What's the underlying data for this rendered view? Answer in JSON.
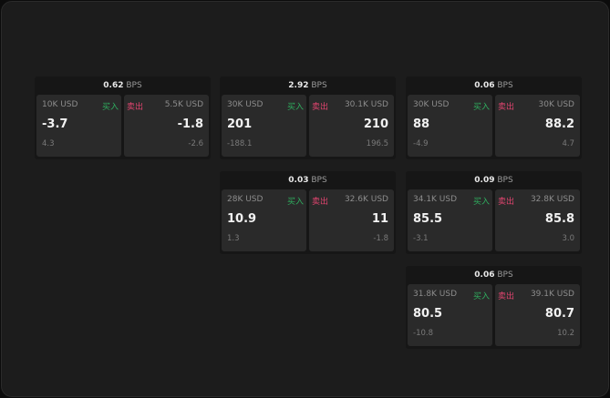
{
  "colors": {
    "buy": "#2fae5f",
    "sell": "#e0446f"
  },
  "unit": "BPS",
  "buy_label": "买入",
  "sell_label": "卖出",
  "quotes": [
    {
      "spread": "0.62",
      "bid_size": "10K USD",
      "bid": "-3.7",
      "bid_chg": "4.3",
      "ask_size": "5.5K USD",
      "ask": "-1.8",
      "ask_chg": "-2.6"
    },
    {
      "spread": "2.92",
      "bid_size": "30K USD",
      "bid": "201",
      "bid_chg": "-188.1",
      "ask_size": "30.1K USD",
      "ask": "210",
      "ask_chg": "196.5"
    },
    {
      "spread": "0.06",
      "bid_size": "30K USD",
      "bid": "88",
      "bid_chg": "-4.9",
      "ask_size": "30K USD",
      "ask": "88.2",
      "ask_chg": "4.7"
    },
    {
      "spread": "0.03",
      "bid_size": "28K USD",
      "bid": "10.9",
      "bid_chg": "1.3",
      "ask_size": "32.6K USD",
      "ask": "11",
      "ask_chg": "-1.8"
    },
    {
      "spread": "0.09",
      "bid_size": "34.1K USD",
      "bid": "85.5",
      "bid_chg": "-3.1",
      "ask_size": "32.8K USD",
      "ask": "85.8",
      "ask_chg": "3.0"
    },
    {
      "spread": "0.06",
      "bid_size": "31.8K USD",
      "bid": "80.5",
      "bid_chg": "-10.8",
      "ask_size": "39.1K USD",
      "ask": "80.7",
      "ask_chg": "10.2"
    }
  ]
}
